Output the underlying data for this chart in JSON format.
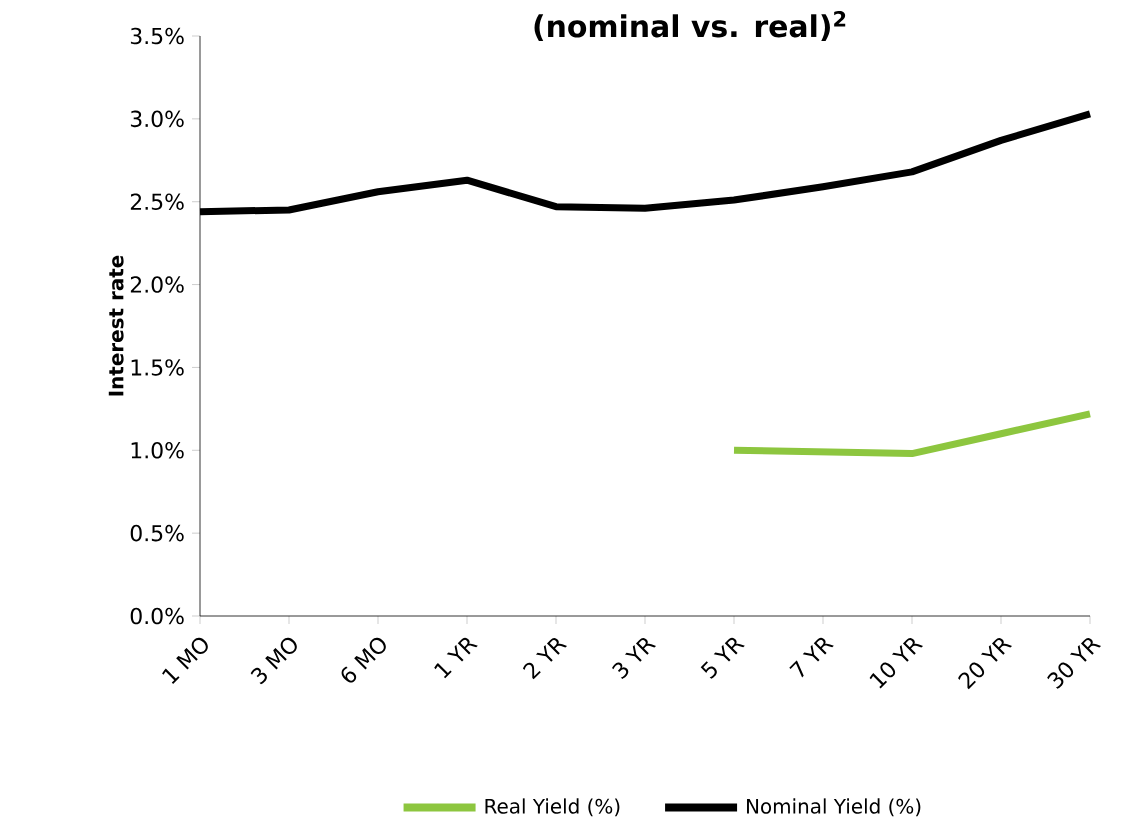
{
  "chart_data": {
    "type": "line",
    "title": "(nominal vs. real)$^{2}$",
    "ylabel": "Interest rate",
    "categories": [
      "1 MO",
      "3 MO",
      "6 MO",
      "1 YR",
      "2 YR",
      "3 YR",
      "5 YR",
      "7 YR",
      "10 YR",
      "20 YR",
      "30 YR"
    ],
    "series": [
      {
        "name": "Real Yield (%)",
        "color": "#8dc63f",
        "values": [
          null,
          null,
          null,
          null,
          null,
          null,
          1.0,
          0.99,
          0.98,
          1.1,
          1.22
        ]
      },
      {
        "name": "Nominal Yield (%)",
        "color": "#000000",
        "values": [
          2.44,
          2.45,
          2.56,
          2.63,
          2.47,
          2.46,
          2.51,
          2.59,
          2.68,
          2.87,
          3.03
        ]
      }
    ],
    "ylim": [
      0,
      3.5
    ],
    "yticks": [
      {
        "value": 0,
        "label": "0.0%"
      },
      {
        "value": 0.5,
        "label": "0.5%"
      },
      {
        "value": 1,
        "label": "1.0%"
      },
      {
        "value": 1.5,
        "label": "1.5%"
      },
      {
        "value": 2,
        "label": "2.0%"
      },
      {
        "value": 2.5,
        "label": "2.5%"
      },
      {
        "value": 3,
        "label": "3.0%"
      },
      {
        "value": 3.5,
        "label": "3.5%"
      }
    ],
    "grid": false,
    "legend": "bottom",
    "marker": "none",
    "line_style": "solid"
  }
}
